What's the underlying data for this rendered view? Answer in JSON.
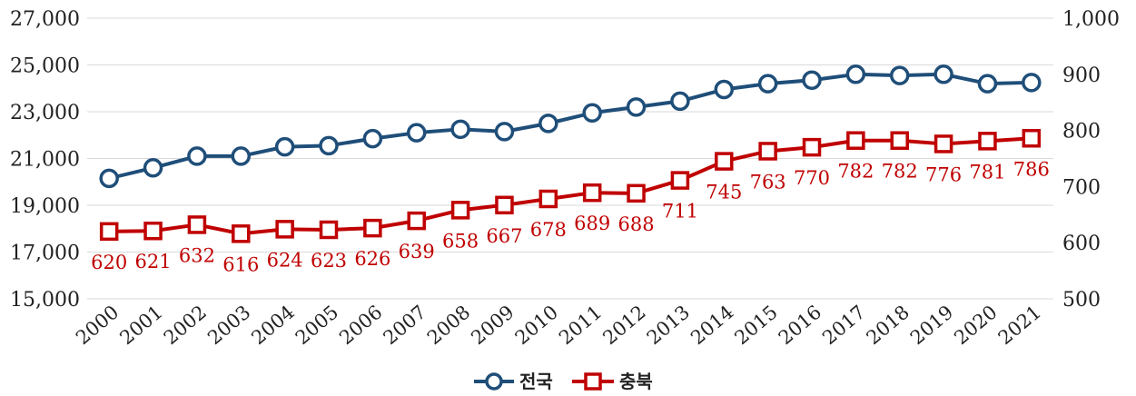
{
  "chart_data": {
    "type": "line",
    "categories": [
      "2000",
      "2001",
      "2002",
      "2003",
      "2004",
      "2005",
      "2006",
      "2007",
      "2008",
      "2009",
      "2010",
      "2011",
      "2012",
      "2013",
      "2014",
      "2015",
      "2016",
      "2017",
      "2018",
      "2019",
      "2020",
      "2021"
    ],
    "series": [
      {
        "name": "전국",
        "axis": "left",
        "color": "#1f4e79",
        "marker": "circle",
        "values": [
          20150,
          20600,
          21100,
          21100,
          21500,
          21550,
          21850,
          22100,
          22250,
          22150,
          22500,
          22950,
          23200,
          23450,
          23950,
          24200,
          24350,
          24600,
          24550,
          24600,
          24200,
          24250
        ]
      },
      {
        "name": "충북",
        "axis": "right",
        "color": "#c00000",
        "marker": "square",
        "values": [
          620,
          621,
          632,
          616,
          624,
          623,
          626,
          639,
          658,
          667,
          678,
          689,
          688,
          711,
          745,
          763,
          770,
          782,
          782,
          776,
          781,
          786
        ],
        "data_labels": [
          "620",
          "621",
          "632",
          "616",
          "624",
          "623",
          "626",
          "639",
          "658",
          "667",
          "678",
          "689",
          "688",
          "711",
          "745",
          "763",
          "770",
          "782",
          "782",
          "776",
          "781",
          "786"
        ]
      }
    ],
    "y_left": {
      "min": 15000,
      "max": 27000,
      "ticks": [
        "15,000",
        "17,000",
        "19,000",
        "21,000",
        "23,000",
        "25,000",
        "27,000"
      ],
      "tick_values": [
        15000,
        17000,
        19000,
        21000,
        23000,
        25000,
        27000
      ]
    },
    "y_right": {
      "min": 500,
      "max": 1000,
      "ticks": [
        "500",
        "600",
        "700",
        "800",
        "900",
        "1,000"
      ],
      "tick_values": [
        500,
        600,
        700,
        800,
        900,
        1000
      ]
    },
    "grid": "horizontal",
    "legend_position": "bottom",
    "gridline_color": "#d9d9d9"
  }
}
